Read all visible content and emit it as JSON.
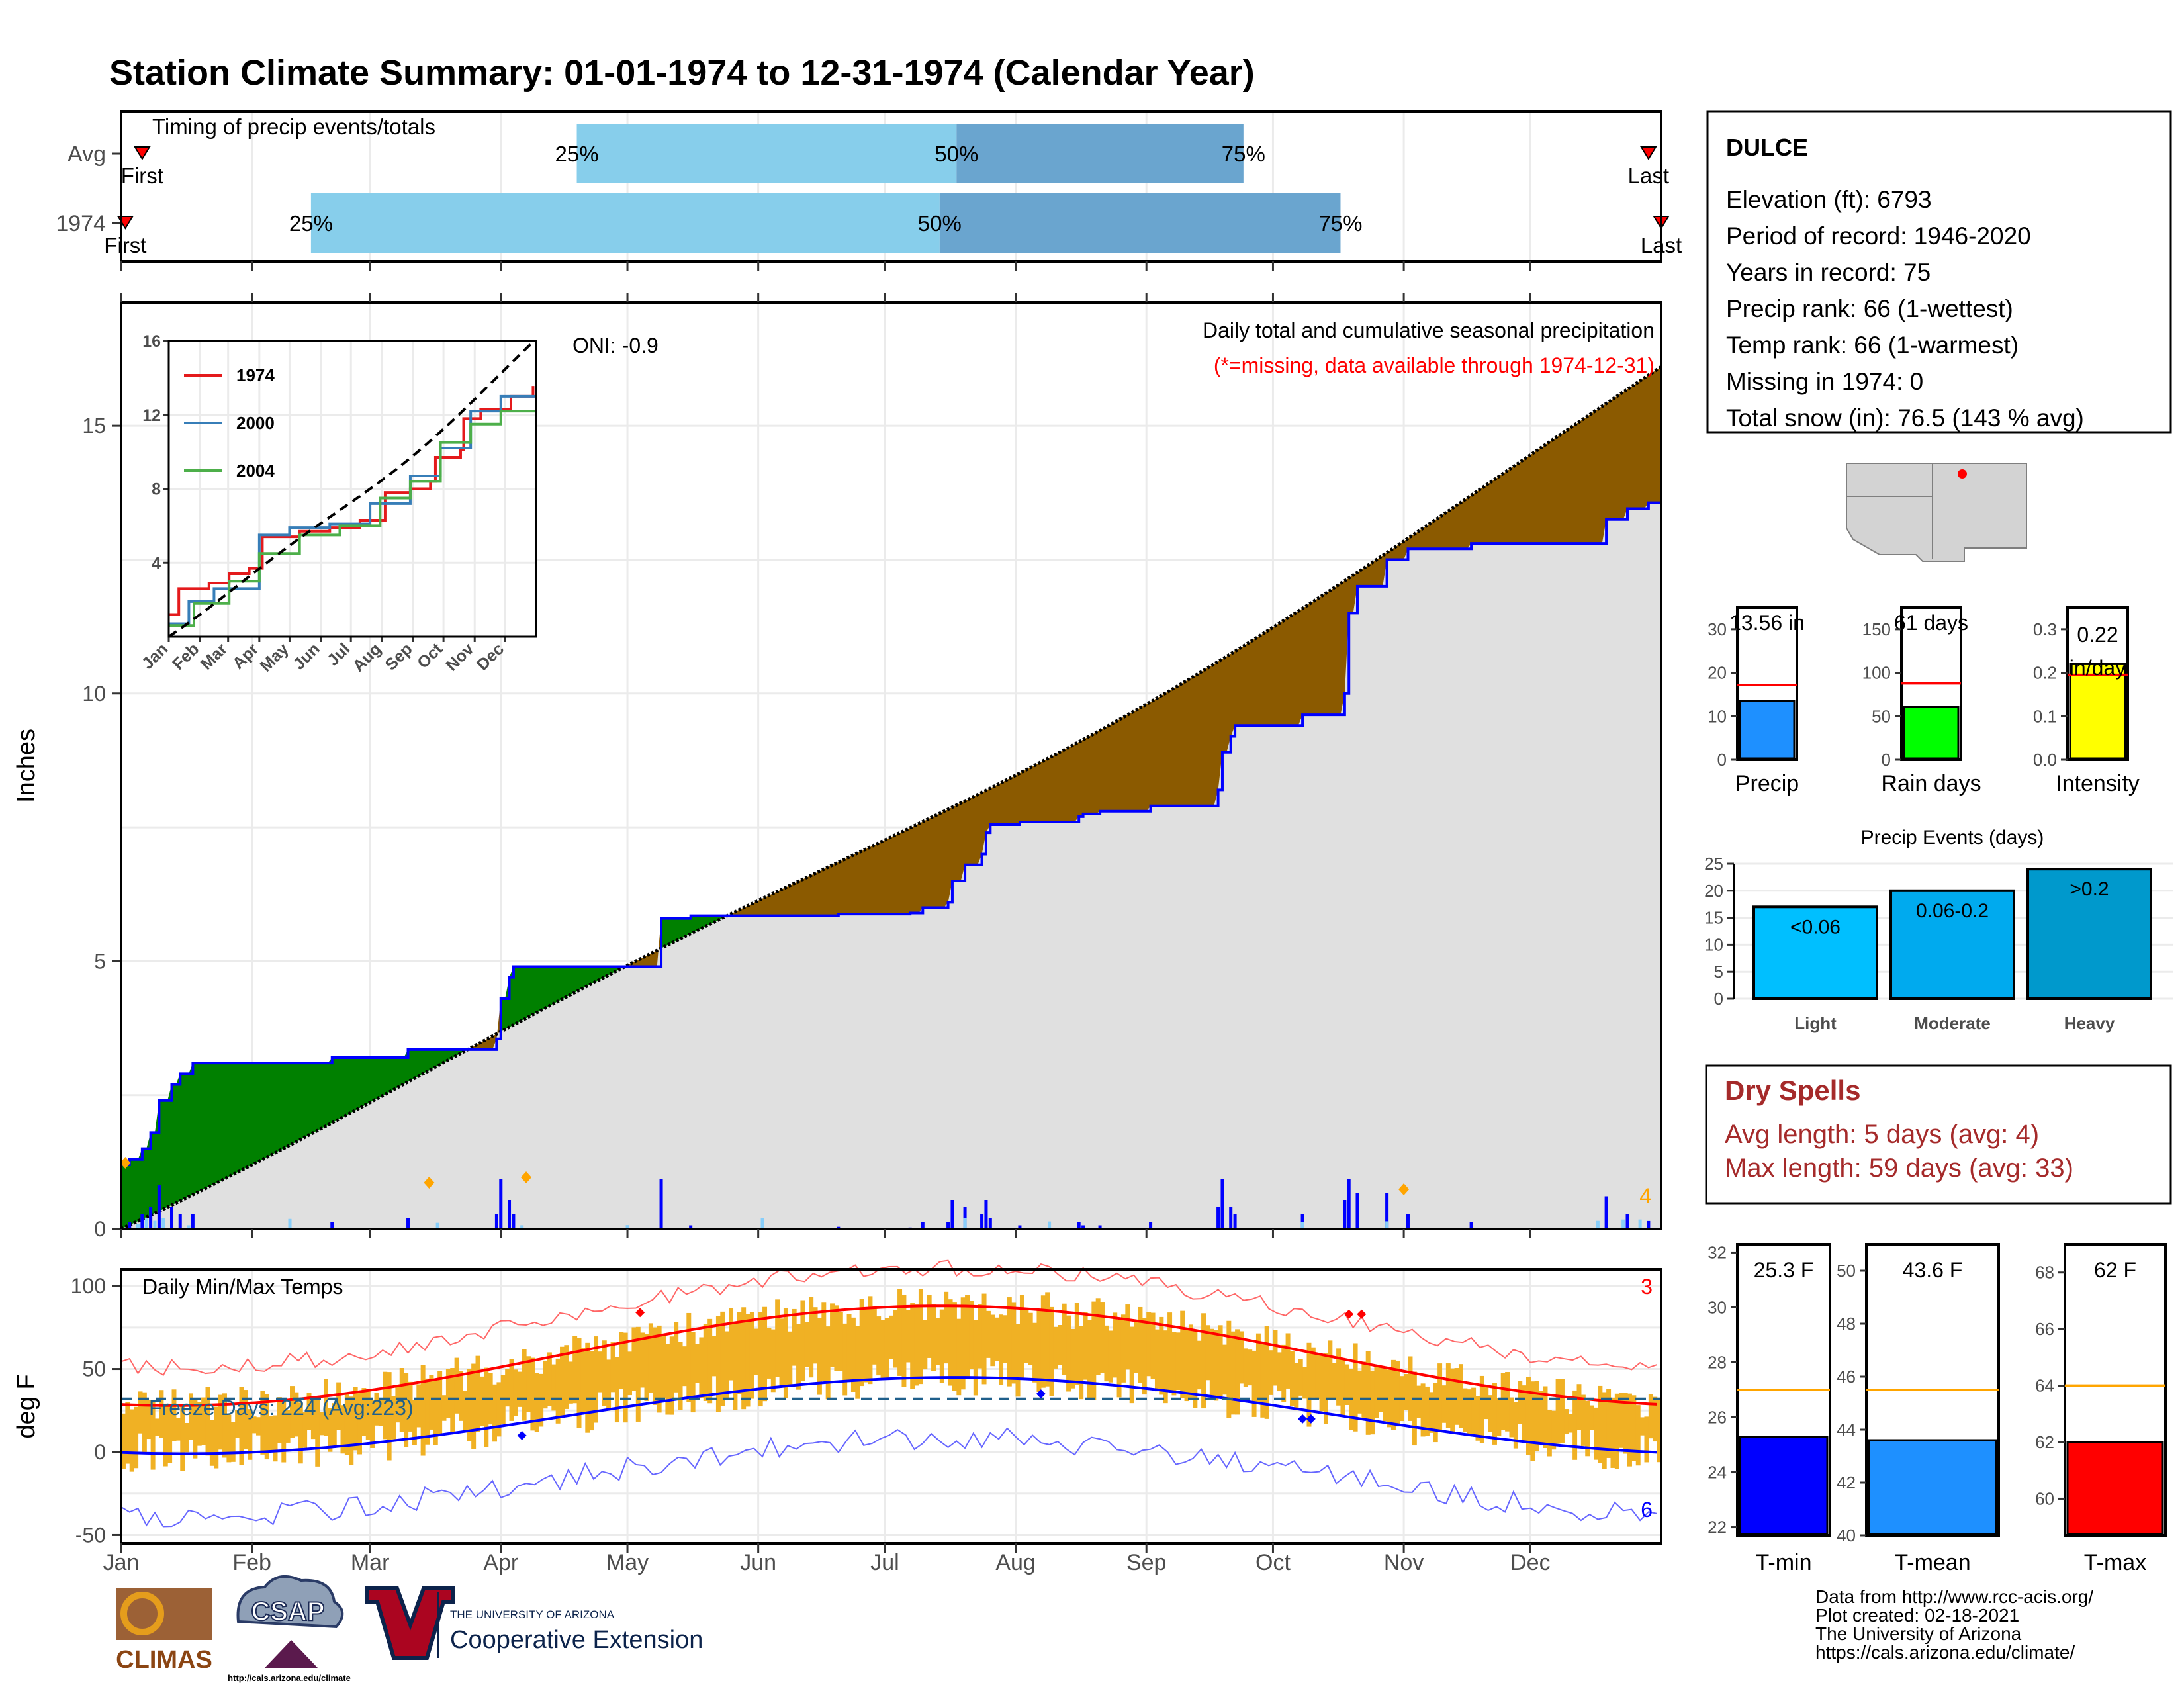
{
  "title": "Station Climate Summary: 01-01-1974 to 12-31-1974 (Calendar Year)",
  "colors": {
    "title": "#000080",
    "q1": "#87ceeb",
    "q2": "#6aa5cf",
    "deficit": "#008000",
    "surplus": "#8b5a00",
    "avg_fill": "#e0e0e0",
    "actual": "#0000ff",
    "temp_bar": "#f0b124",
    "tmax_avg": "#ff0000",
    "tmin_avg": "#0000ff",
    "dry": "#a52a2a"
  },
  "months": [
    "Jan",
    "Feb",
    "Mar",
    "Apr",
    "May",
    "Jun",
    "Jul",
    "Aug",
    "Sep",
    "Oct",
    "Nov",
    "Dec"
  ],
  "timing": {
    "label": "Timing of precip events/totals",
    "rows": [
      "Avg",
      "1974"
    ],
    "pct_labels": [
      "25%",
      "50%",
      "75%"
    ],
    "first_label": "First",
    "last_label": "Last",
    "avg": {
      "first_day": 5,
      "q25": 108,
      "q50": 198,
      "q75": 266,
      "last_day": 362
    },
    "year": {
      "first_day": 1,
      "q25": 45,
      "q50": 194,
      "q75": 289,
      "last_day": 365
    }
  },
  "precip_panel": {
    "ylabel": "Inches",
    "yticks": [
      0,
      5,
      10,
      15
    ],
    "ylim": [
      0,
      17.3
    ],
    "subtitle": "Daily total and cumulative seasonal precipitation",
    "missing_note": "(*=missing, data available through 1974-12-31)",
    "oni": "ONI: -0.9",
    "corner_count": "4",
    "avg_cum_end": 16.1,
    "year_cum_end": 13.56
  },
  "inset": {
    "yticks": [
      4,
      8,
      12,
      16
    ],
    "ylim": [
      0,
      16
    ],
    "series": [
      {
        "name": "1974",
        "color": "#e41a1c"
      },
      {
        "name": "2000",
        "color": "#377eb8"
      },
      {
        "name": "2004",
        "color": "#4daf4a"
      }
    ]
  },
  "temp_panel": {
    "ylabel": "deg F",
    "title": "Daily Min/Max Temps",
    "yticks": [
      -50,
      0,
      50,
      100
    ],
    "ylim": [
      -55,
      110
    ],
    "freeze_label": "Freeze Days: 224 (Avg:223)",
    "freeze_line": 32,
    "corner_hot": "3",
    "corner_cold": "6"
  },
  "station": {
    "name": "DULCE",
    "lines": [
      "Elevation (ft): 6793",
      "Period of record: 1946-2020",
      "Years in record: 75",
      "Precip rank: 66 (1-wettest)",
      "Temp rank: 66 (1-warmest)",
      "Missing in 1974: 0",
      "Total snow (in): 76.5 (143 % avg)"
    ]
  },
  "mini_bars": [
    {
      "label": "Precip",
      "value_label": "13.56 in",
      "value": 13.56,
      "avg": 17.2,
      "ylim": [
        0,
        35
      ],
      "ticks": [
        0,
        10,
        20,
        30
      ],
      "tick_labels": [
        "0",
        "10",
        "20",
        "30"
      ],
      "color": "#1e90ff"
    },
    {
      "label": "Rain days",
      "value_label": "61 days",
      "value": 61,
      "avg": 88,
      "ylim": [
        0,
        175
      ],
      "ticks": [
        0,
        50,
        100,
        150
      ],
      "tick_labels": [
        "0",
        "50",
        "100",
        "150"
      ],
      "color": "#00ff00"
    },
    {
      "label": "Intensity",
      "value_label": "0.22",
      "value_label2": "in/day",
      "value": 0.22,
      "avg": 0.195,
      "ylim": [
        0,
        0.35
      ],
      "ticks": [
        0,
        0.1,
        0.2,
        0.3
      ],
      "tick_labels": [
        "0.0",
        "0.1",
        "0.2",
        "0.3"
      ],
      "color": "#ffff00"
    }
  ],
  "events": {
    "title": "Precip Events (days)",
    "yticks": [
      0,
      5,
      10,
      15,
      20,
      25
    ],
    "ylim": [
      0,
      25
    ],
    "bars": [
      {
        "label": "Light",
        "value_label": "<0.06",
        "value": 17,
        "color": "#00bfff"
      },
      {
        "label": "Moderate",
        "value_label": "0.06-0.2",
        "value": 20,
        "color": "#00aaee"
      },
      {
        "label": "Heavy",
        "value_label": ">0.2",
        "value": 24,
        "color": "#0099cc"
      }
    ]
  },
  "dry_spells": {
    "title": "Dry Spells",
    "avg_line": "Avg length: 5 days (avg: 4)",
    "max_line": "Max length: 59 days (avg: 33)"
  },
  "temp_bars": [
    {
      "label": "T-min",
      "value_label": "25.3 F",
      "value": 25.3,
      "avg": 27,
      "ylim": [
        21.7,
        32.3
      ],
      "ticks": [
        22,
        24,
        26,
        28,
        30,
        32
      ],
      "color": "#0000ff"
    },
    {
      "label": "T-mean",
      "value_label": "43.6 F",
      "value": 43.6,
      "avg": 45.5,
      "ylim": [
        40,
        51
      ],
      "ticks": [
        40,
        42,
        44,
        46,
        48,
        50
      ],
      "color": "#1e90ff"
    },
    {
      "label": "T-max",
      "value_label": "62 F",
      "value": 62,
      "avg": 64,
      "ylim": [
        58.7,
        69
      ],
      "ticks": [
        60,
        62,
        64,
        66,
        68
      ],
      "color": "#ff0000"
    }
  ],
  "credits": [
    "Data from http://www.rcc-acis.org/",
    "Plot created: 02-18-2021",
    "The University of Arizona",
    "https://cals.arizona.edu/climate/"
  ],
  "logos": {
    "climas": "CLIMAS",
    "csap": "CSAP",
    "csap_url": "http://cals.arizona.edu/climate",
    "ua_small": "THE UNIVERSITY OF ARIZONA",
    "ua_big": "Cooperative Extension"
  }
}
